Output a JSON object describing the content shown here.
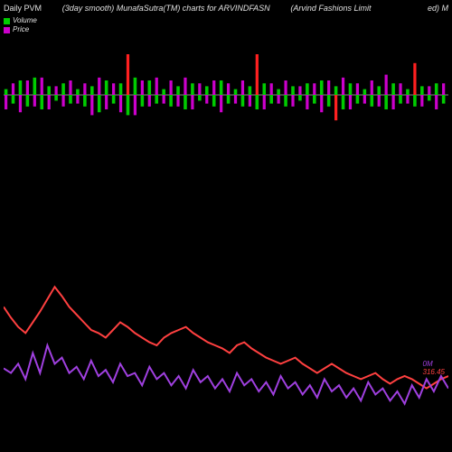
{
  "header": {
    "left": "Daily PVM",
    "center": "(3day smooth) MunafaSutra(TM) charts for ARVINDFASN",
    "right_company": "(Arvind Fashions Limit",
    "right_suffix": "ed) M"
  },
  "legend": {
    "volume": {
      "label": "Volume",
      "color": "#00cc00"
    },
    "price": {
      "label": "Price",
      "color": "#cc00cc"
    }
  },
  "bar_chart": {
    "baseline_color": "#888888",
    "volume_color": "#00cc00",
    "price_color": "#cc00cc",
    "extreme_color": "#ff2020",
    "n_bars": 62,
    "volume_values": [
      2,
      -3,
      5,
      -4,
      6,
      -5,
      3,
      -2,
      4,
      -3,
      2,
      -4,
      3,
      -6,
      5,
      -3,
      4,
      -7,
      6,
      -4,
      5,
      -3,
      2,
      -4,
      3,
      -5,
      4,
      -2,
      3,
      -4,
      5,
      -3,
      2,
      -4,
      3,
      -5,
      4,
      -3,
      2,
      -4,
      3,
      -2,
      4,
      -3,
      5,
      -4,
      3,
      -5,
      4,
      -3,
      2,
      -4,
      3,
      -5,
      4,
      -3,
      2,
      -4,
      3,
      -2,
      4,
      -3
    ],
    "price_values": [
      -5,
      4,
      -6,
      5,
      -4,
      6,
      -5,
      3,
      -4,
      5,
      -3,
      4,
      -7,
      6,
      -5,
      4,
      -6,
      8,
      -7,
      5,
      -4,
      6,
      -3,
      5,
      -4,
      6,
      -5,
      4,
      -3,
      5,
      -6,
      4,
      -3,
      5,
      -4,
      7,
      -5,
      4,
      -3,
      5,
      -4,
      3,
      -5,
      4,
      -6,
      5,
      -4,
      6,
      -5,
      4,
      -3,
      5,
      -4,
      7,
      -5,
      4,
      -3,
      5,
      -4,
      3,
      -5,
      4
    ],
    "extreme_bars": [
      17,
      35,
      46,
      57
    ]
  },
  "line_chart": {
    "line1_color": "#ff4040",
    "line2_color": "#a040e0",
    "line_width": 2,
    "n_points": 62,
    "line1_values": [
      65,
      58,
      52,
      48,
      55,
      62,
      70,
      78,
      72,
      65,
      60,
      55,
      50,
      48,
      45,
      50,
      55,
      52,
      48,
      45,
      42,
      40,
      45,
      48,
      50,
      52,
      48,
      45,
      42,
      40,
      38,
      35,
      40,
      42,
      38,
      35,
      32,
      30,
      28,
      30,
      32,
      28,
      25,
      22,
      25,
      28,
      25,
      22,
      20,
      18,
      20,
      22,
      18,
      15,
      18,
      20,
      18,
      15,
      12,
      15,
      18,
      20
    ],
    "line2_values": [
      25,
      22,
      28,
      18,
      35,
      22,
      40,
      28,
      32,
      22,
      26,
      18,
      30,
      20,
      24,
      16,
      28,
      20,
      22,
      14,
      26,
      18,
      22,
      14,
      20,
      12,
      24,
      16,
      20,
      12,
      18,
      10,
      22,
      14,
      18,
      10,
      16,
      8,
      20,
      12,
      16,
      8,
      14,
      6,
      18,
      10,
      14,
      6,
      12,
      4,
      16,
      8,
      12,
      4,
      10,
      2,
      14,
      6,
      18,
      10,
      20,
      12
    ]
  },
  "value_labels": {
    "v1": "0M",
    "v2": "316.45"
  }
}
